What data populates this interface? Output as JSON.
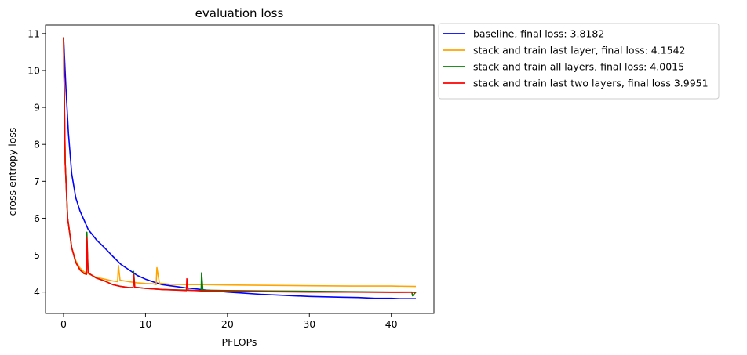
{
  "chart_data": {
    "type": "line",
    "title": "evaluation loss",
    "xlabel": "PFLOPs",
    "ylabel": "cross entropy loss",
    "xlim": [
      -2.2,
      45.2
    ],
    "ylim": [
      3.42,
      11.23
    ],
    "xticks": [
      0,
      10,
      20,
      30,
      40
    ],
    "yticks": [
      4,
      5,
      6,
      7,
      8,
      9,
      10,
      11
    ],
    "grid": false,
    "legend_position": "outside upper right",
    "series": [
      {
        "name": "baseline, final loss: 3.8182",
        "color": "#0000ff",
        "x": [
          0,
          0.3,
          0.6,
          1,
          1.5,
          2,
          2.5,
          3,
          4,
          5,
          6,
          7,
          8,
          9,
          10,
          11,
          12,
          13,
          14,
          15,
          16,
          17,
          18,
          19,
          20,
          22,
          24,
          26,
          28,
          30,
          32,
          34,
          36,
          38,
          40,
          41,
          42,
          43
        ],
        "y": [
          10.9,
          9.5,
          8.3,
          7.2,
          6.55,
          6.2,
          5.95,
          5.7,
          5.42,
          5.2,
          4.97,
          4.75,
          4.6,
          4.45,
          4.35,
          4.27,
          4.2,
          4.17,
          4.14,
          4.11,
          4.09,
          4.06,
          4.04,
          4.02,
          4.0,
          3.97,
          3.94,
          3.92,
          3.9,
          3.88,
          3.87,
          3.86,
          3.85,
          3.83,
          3.83,
          3.82,
          3.82,
          3.82
        ]
      },
      {
        "name": "stack and train last layer, final loss: 4.1542",
        "color": "#ffa500",
        "x": [
          0,
          0.2,
          0.5,
          1,
          1.5,
          2,
          2.5,
          3,
          4,
          5,
          6,
          6.6,
          6.7,
          6.9,
          8,
          9,
          10,
          11,
          11.3,
          11.4,
          11.7,
          13,
          15,
          17,
          20,
          25,
          30,
          35,
          40,
          43
        ],
        "y": [
          10.9,
          7.5,
          6.0,
          5.2,
          4.85,
          4.65,
          4.55,
          4.5,
          4.4,
          4.35,
          4.3,
          4.28,
          4.72,
          4.32,
          4.28,
          4.25,
          4.23,
          4.22,
          4.2,
          4.66,
          4.24,
          4.21,
          4.2,
          4.2,
          4.19,
          4.18,
          4.17,
          4.16,
          4.16,
          4.15
        ]
      },
      {
        "name": "stack and train all layers, final loss: 4.0015",
        "color": "#008000",
        "x": [
          0,
          0.2,
          0.5,
          1,
          1.5,
          2,
          2.5,
          2.8,
          2.85,
          3.0,
          4,
          5,
          6,
          7,
          8,
          8.5,
          8.55,
          8.7,
          10,
          12,
          15,
          16.8,
          16.85,
          17.0,
          20,
          25,
          30,
          35,
          40,
          42.5,
          42.6,
          43
        ],
        "y": [
          10.9,
          7.5,
          6.0,
          5.2,
          4.8,
          4.6,
          4.5,
          4.48,
          5.62,
          4.52,
          4.38,
          4.3,
          4.2,
          4.15,
          4.12,
          4.12,
          4.56,
          4.13,
          4.1,
          4.07,
          4.05,
          4.04,
          4.52,
          4.05,
          4.04,
          4.03,
          4.02,
          4.01,
          4.0,
          4.0,
          3.9,
          4.0
        ]
      },
      {
        "name": "stack and train last two layers, final loss 3.9951",
        "color": "#ff0000",
        "x": [
          0,
          0.2,
          0.5,
          1,
          1.5,
          2,
          2.5,
          2.8,
          2.85,
          3.0,
          4,
          5,
          6,
          7,
          8,
          8.5,
          8.55,
          8.7,
          10,
          12,
          14,
          15,
          15.05,
          15.2,
          17,
          20,
          25,
          30,
          35,
          40,
          43
        ],
        "y": [
          10.9,
          7.5,
          6.0,
          5.2,
          4.8,
          4.6,
          4.5,
          4.48,
          5.47,
          4.52,
          4.38,
          4.3,
          4.2,
          4.15,
          4.12,
          4.12,
          4.48,
          4.13,
          4.1,
          4.07,
          4.05,
          4.04,
          4.36,
          4.05,
          4.03,
          4.02,
          4.01,
          4.0,
          4.0,
          3.99,
          3.995
        ]
      }
    ]
  }
}
